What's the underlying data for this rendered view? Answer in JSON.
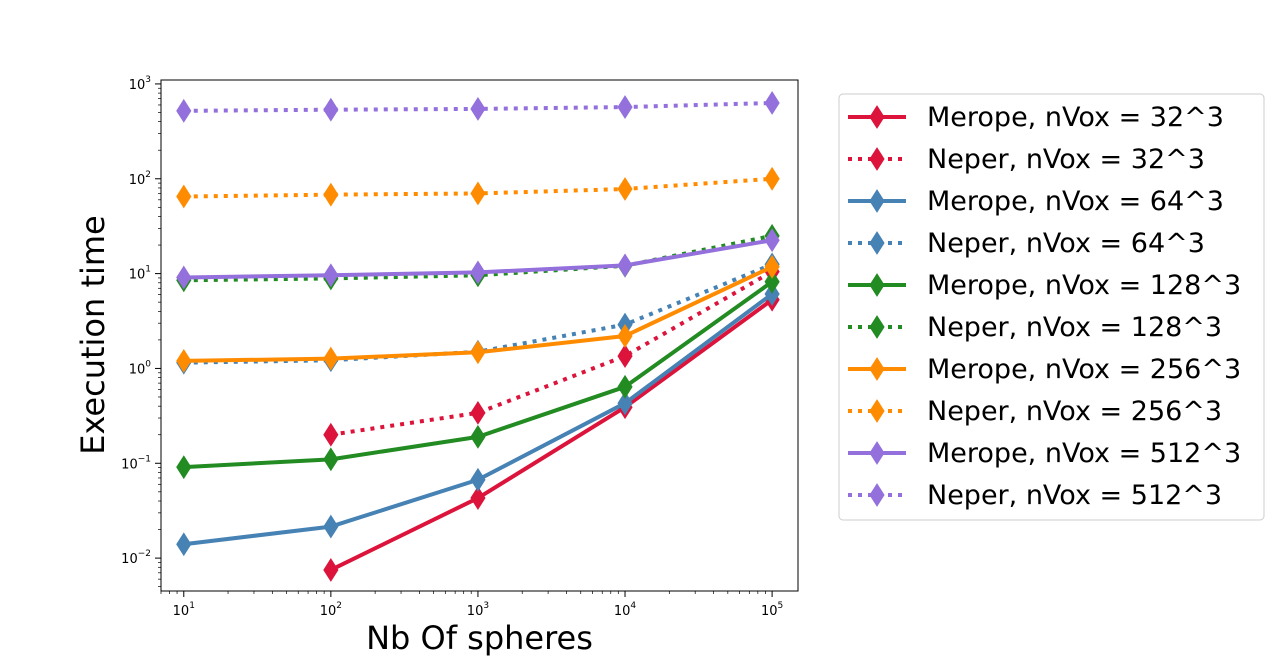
{
  "chart_data": {
    "type": "line",
    "xscale": "log",
    "yscale": "log",
    "xlabel": "Nb Of spheres",
    "ylabel": "Execution time",
    "xlim": [
      7,
      150000
    ],
    "ylim": [
      0.0045,
      1100
    ],
    "x_ticks": [
      {
        "value": 10,
        "base": "10",
        "exp": "1"
      },
      {
        "value": 100,
        "base": "10",
        "exp": "2"
      },
      {
        "value": 1000,
        "base": "10",
        "exp": "3"
      },
      {
        "value": 10000,
        "base": "10",
        "exp": "4"
      },
      {
        "value": 100000,
        "base": "10",
        "exp": "5"
      }
    ],
    "y_ticks": [
      {
        "value": 0.01,
        "base": "10",
        "exp": "−2"
      },
      {
        "value": 0.1,
        "base": "10",
        "exp": "−1"
      },
      {
        "value": 1,
        "base": "10",
        "exp": "0"
      },
      {
        "value": 10,
        "base": "10",
        "exp": "1"
      },
      {
        "value": 100,
        "base": "10",
        "exp": "2"
      },
      {
        "value": 1000,
        "base": "10",
        "exp": "3"
      }
    ],
    "grid": false,
    "legend_position": "outside-right",
    "series": [
      {
        "name": "Merope, nVox = 32^3",
        "color": "#dc143c",
        "style": "solid",
        "x": [
          100,
          1000,
          10000,
          100000
        ],
        "y": [
          0.0075,
          0.043,
          0.39,
          5.3
        ]
      },
      {
        "name": "Neper, nVox = 32^3",
        "color": "#dc143c",
        "style": "dotted",
        "x": [
          100,
          1000,
          10000,
          100000
        ],
        "y": [
          0.2,
          0.34,
          1.35,
          10.5
        ]
      },
      {
        "name": "Merope, nVox = 64^3",
        "color": "#4682b4",
        "style": "solid",
        "x": [
          10,
          100,
          1000,
          10000,
          100000
        ],
        "y": [
          0.014,
          0.0215,
          0.067,
          0.43,
          6.1
        ]
      },
      {
        "name": "Neper, nVox = 64^3",
        "color": "#4682b4",
        "style": "dotted",
        "x": [
          10,
          100,
          1000,
          10000,
          100000
        ],
        "y": [
          1.15,
          1.22,
          1.5,
          2.9,
          12.5
        ]
      },
      {
        "name": "Merope, nVox = 128^3",
        "color": "#228b22",
        "style": "solid",
        "x": [
          10,
          100,
          1000,
          10000,
          100000
        ],
        "y": [
          0.091,
          0.11,
          0.19,
          0.64,
          8.2
        ]
      },
      {
        "name": "Neper, nVox = 128^3",
        "color": "#228b22",
        "style": "dotted",
        "x": [
          10,
          100,
          1000,
          10000,
          100000
        ],
        "y": [
          8.5,
          8.9,
          9.6,
          12.1,
          25
        ]
      },
      {
        "name": "Merope, nVox = 256^3",
        "color": "#ff8c00",
        "style": "solid",
        "x": [
          10,
          100,
          1000,
          10000,
          100000
        ],
        "y": [
          1.2,
          1.27,
          1.48,
          2.2,
          11.8
        ]
      },
      {
        "name": "Neper, nVox = 256^3",
        "color": "#ff8c00",
        "style": "dotted",
        "x": [
          10,
          100,
          1000,
          10000,
          100000
        ],
        "y": [
          65,
          68,
          70,
          78,
          100
        ]
      },
      {
        "name": "Merope, nVox = 512^3",
        "color": "#9370db",
        "style": "solid",
        "x": [
          10,
          100,
          1000,
          10000,
          100000
        ],
        "y": [
          9.1,
          9.6,
          10.3,
          12.2,
          22.5
        ]
      },
      {
        "name": "Neper, nVox = 512^3",
        "color": "#9370db",
        "style": "dotted",
        "x": [
          10,
          100,
          1000,
          10000,
          100000
        ],
        "y": [
          520,
          535,
          545,
          570,
          630
        ]
      }
    ]
  }
}
